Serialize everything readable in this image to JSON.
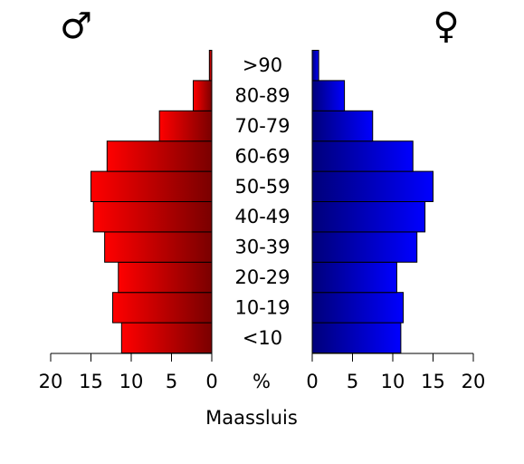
{
  "chart_data": {
    "type": "bar",
    "title": "",
    "place": "Maassluis",
    "male_symbol": "♂",
    "female_symbol": "♀",
    "percent_label": "%",
    "categories": [
      "<10",
      "10-19",
      "20-29",
      "30-39",
      "40-49",
      "50-59",
      "60-69",
      "70-79",
      "80-89",
      ">90"
    ],
    "series": [
      {
        "key": "male",
        "values": [
          11.2,
          12.3,
          11.6,
          13.3,
          14.7,
          15.0,
          13.0,
          6.5,
          2.3,
          0.3
        ],
        "color_light": "#ff0000",
        "color_dark": "#7a0000"
      },
      {
        "key": "female",
        "values": [
          11.0,
          11.3,
          10.5,
          13.0,
          14.0,
          15.0,
          12.5,
          7.5,
          4.0,
          0.8
        ],
        "color_light": "#0000ff",
        "color_dark": "#00007a"
      }
    ],
    "xlim": [
      0,
      20
    ],
    "ticks": [
      0,
      5,
      10,
      15,
      20
    ],
    "tick_labels": [
      "0",
      "5",
      "10",
      "15",
      "20"
    ],
    "grid": false
  }
}
